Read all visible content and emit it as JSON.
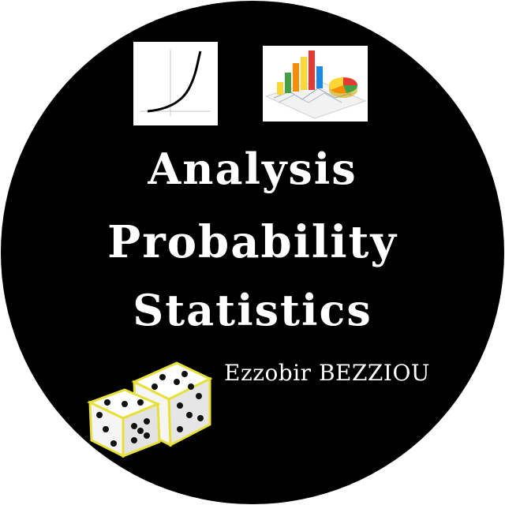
{
  "logo": {
    "title_lines": [
      "Analysis",
      "Probability",
      "Statistics"
    ],
    "author": "Ezzobir BEZZIOU",
    "background_color": "#000000",
    "text_color": "#ffffff",
    "icons": {
      "curve": "exponential-curve-icon",
      "stats": "bar-pie-chart-icon",
      "dice": "dice-icon"
    },
    "chart_colors": [
      "#e53935",
      "#43a047",
      "#fdd835",
      "#1e88e5",
      "#fb8c00"
    ]
  }
}
